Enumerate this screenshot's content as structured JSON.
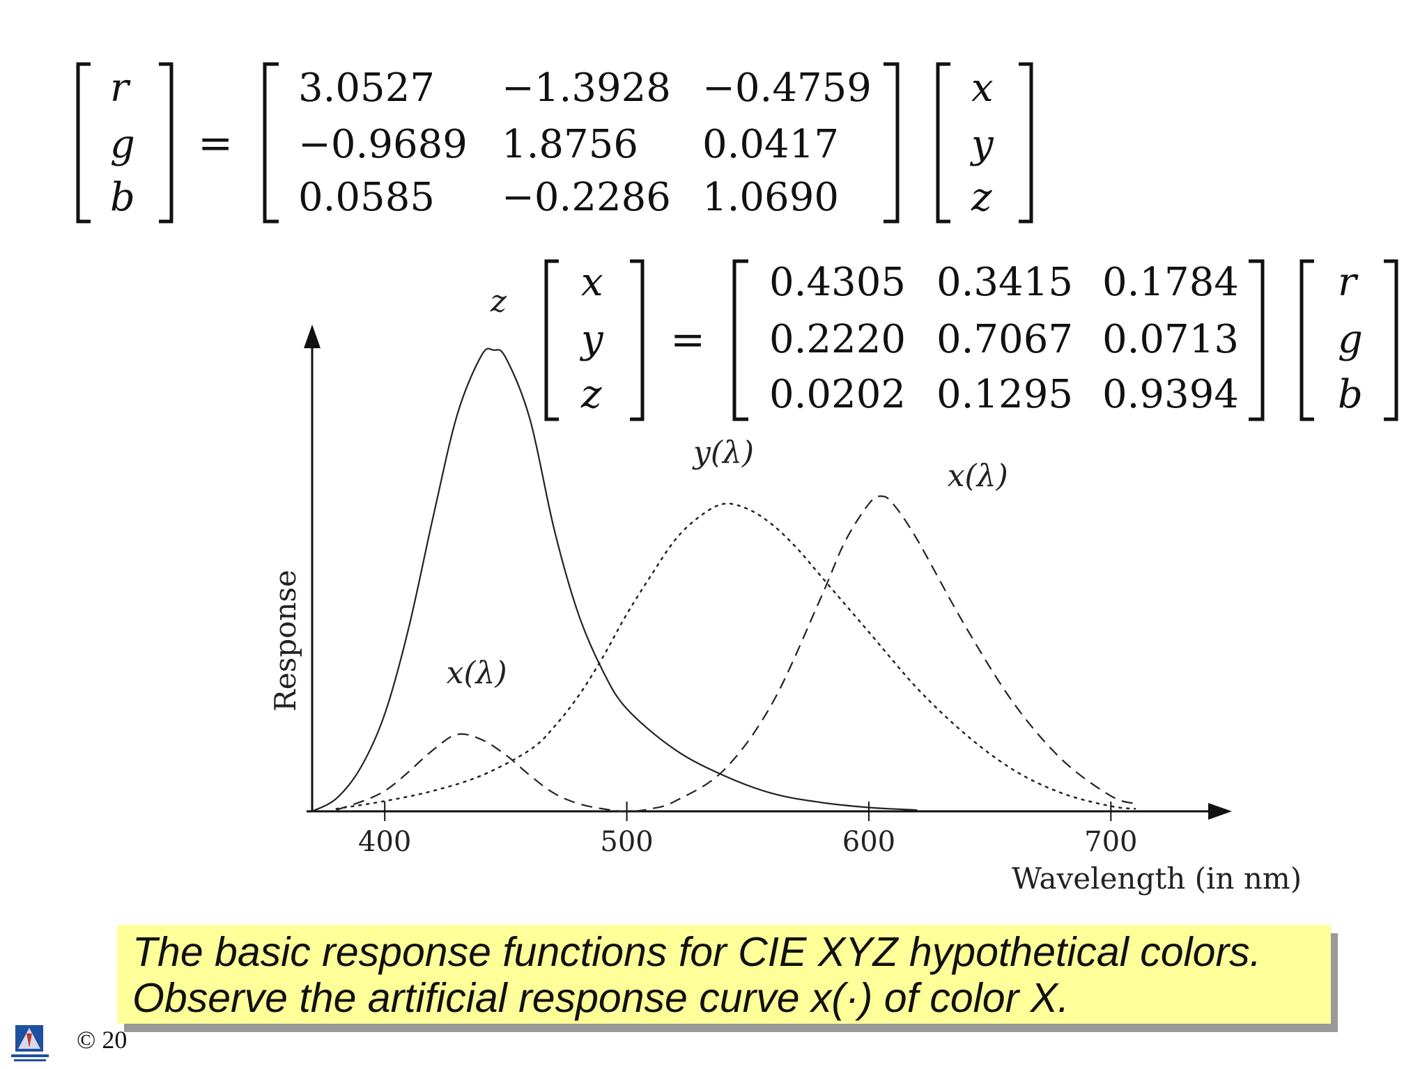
{
  "matrix1": {
    "lhs": [
      "r",
      "g",
      "b"
    ],
    "equals": "=",
    "rows": [
      [
        "3.0527",
        "−1.3928",
        "−0.4759"
      ],
      [
        "−0.9689",
        "1.8756",
        "0.0417"
      ],
      [
        "0.0585",
        "−0.2286",
        "1.0690"
      ]
    ],
    "rhs": [
      "x",
      "y",
      "z"
    ]
  },
  "matrix2": {
    "lhs": [
      "x",
      "y",
      "z"
    ],
    "equals": "=",
    "rows": [
      [
        "0.4305",
        "0.3415",
        "0.1784"
      ],
      [
        "0.2220",
        "0.7067",
        "0.0713"
      ],
      [
        "0.0202",
        "0.1295",
        "0.9394"
      ]
    ],
    "rhs": [
      "r",
      "g",
      "b"
    ]
  },
  "chart_data": {
    "type": "line",
    "xlabel": "Wavelength (in nm)",
    "ylabel": "Response",
    "xlim": [
      370,
      750
    ],
    "ylim": [
      0,
      1.9
    ],
    "x_ticks": [
      "400",
      "500",
      "600",
      "700"
    ],
    "grid": false,
    "series": [
      {
        "name": "z",
        "style": "solid",
        "x": [
          370,
          380,
          390,
          400,
          410,
          420,
          430,
          440,
          445,
          450,
          460,
          470,
          480,
          490,
          500,
          520,
          540,
          560,
          580,
          600,
          620
        ],
        "y": [
          0.0,
          0.05,
          0.17,
          0.38,
          0.72,
          1.15,
          1.55,
          1.78,
          1.8,
          1.77,
          1.53,
          1.1,
          0.77,
          0.55,
          0.4,
          0.24,
          0.14,
          0.07,
          0.035,
          0.015,
          0.005
        ]
      },
      {
        "name": "x(λ)",
        "style": "dashed",
        "x": [
          380,
          400,
          420,
          430,
          440,
          450,
          460,
          470,
          480,
          490,
          500,
          510,
          520,
          540,
          560,
          580,
          590,
          600,
          605,
          610,
          620,
          640,
          660,
          680,
          700,
          710
        ],
        "y": [
          0.005,
          0.08,
          0.24,
          0.3,
          0.28,
          0.22,
          0.14,
          0.07,
          0.03,
          0.01,
          0.0,
          0.01,
          0.04,
          0.16,
          0.42,
          0.83,
          1.05,
          1.2,
          1.23,
          1.2,
          1.06,
          0.72,
          0.42,
          0.2,
          0.06,
          0.03
        ]
      },
      {
        "name": "y(λ)",
        "style": "dotted",
        "x": [
          380,
          400,
          420,
          440,
          460,
          470,
          480,
          490,
          500,
          510,
          520,
          530,
          540,
          550,
          560,
          570,
          580,
          600,
          620,
          640,
          660,
          680,
          700,
          710
        ],
        "y": [
          0.01,
          0.04,
          0.08,
          0.14,
          0.24,
          0.33,
          0.45,
          0.6,
          0.77,
          0.92,
          1.06,
          1.15,
          1.2,
          1.18,
          1.12,
          1.03,
          0.92,
          0.7,
          0.48,
          0.3,
          0.16,
          0.07,
          0.02,
          0.01
        ]
      }
    ],
    "annotations": [
      {
        "text": "z",
        "at_x": 447,
        "at_y": 1.95
      },
      {
        "text": "x(λ)",
        "at_x": 438,
        "at_y": 0.5
      },
      {
        "text": "y(λ)",
        "at_x": 540,
        "at_y": 1.36
      },
      {
        "text": "x(λ)",
        "at_x": 645,
        "at_y": 1.27
      }
    ]
  },
  "caption": {
    "line1": "The basic response functions for CIE XYZ hypothetical colors.",
    "line2": "Observe the artificial response curve x(·) of color X."
  },
  "footer": {
    "copyright": "© 20"
  }
}
